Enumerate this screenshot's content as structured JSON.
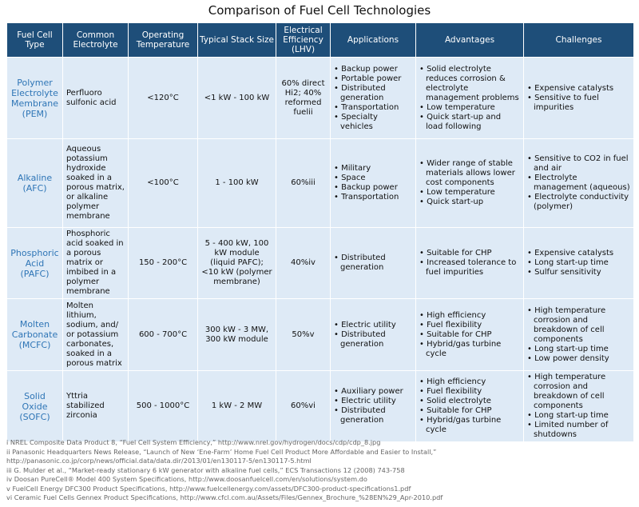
{
  "title": "Comparison of Fuel Cell Technologies",
  "table": {
    "header": [
      "Fuel Cell Type",
      "Common Electrolyte",
      "Operating Temperature",
      "Typical Stack Size",
      "Electrical Efficiency (LHV)",
      "Applications",
      "Advantages",
      "Challenges"
    ],
    "rows": [
      [
        "Polymer Electrolyte Membrane (PEM)",
        "Perfluoro sulfonic acid",
        "<120°C",
        "<1 kW - 100 kW",
        "60% direct Hi2; 40% reformed fuelii",
        [
          "Backup power",
          "Portable power",
          "Distributed generation",
          "Transportation",
          "Specialty vehicles"
        ],
        [
          "Solid electrolyte reduces corrosion & electrolyte management problems",
          "Low temperature",
          "Quick start-up and load following"
        ],
        [
          "Expensive catalysts",
          "Sensitive to fuel impurities"
        ]
      ],
      [
        "Alkaline (AFC)",
        "Aqueous potassium hydroxide soaked in a porous matrix, or alkaline polymer membrane",
        "<100°C",
        "1 - 100 kW",
        "60%iii",
        [
          "Military",
          "Space",
          "Backup power",
          "Transportation"
        ],
        [
          "Wider range of stable materials allows lower cost components",
          "Low temperature",
          "Quick start-up"
        ],
        [
          "Sensitive to CO2 in fuel and air",
          "Electrolyte management (aqueous)",
          "Electrolyte conductivity (polymer)"
        ]
      ],
      [
        "Phosphoric Acid (PAFC)",
        "Phosphoric acid soaked in a porous matrix or imbibed in a polymer membrane",
        "150 - 200°C",
        "5 - 400 kW, 100 kW module (liquid PAFC); <10 kW (polymer membrane)",
        "40%iv",
        [
          "Distributed generation"
        ],
        [
          "Suitable for CHP",
          "Increased tolerance to fuel impurities"
        ],
        [
          "Expensive catalysts",
          "Long start-up time",
          "Sulfur sensitivity"
        ]
      ],
      [
        "Molten Carbonate (MCFC)",
        "Molten lithium, sodium, and/ or potassium carbonates, soaked in a porous matrix",
        "600 - 700°C",
        "300 kW - 3 MW, 300 kW module",
        "50%v",
        [
          "Electric utility",
          "Distributed generation"
        ],
        [
          "High efficiency",
          "Fuel flexibility",
          "Suitable for CHP",
          "Hybrid/gas turbine cycle"
        ],
        [
          "High temperature corrosion and breakdown of cell components",
          "Long start-up time",
          "Low power density"
        ]
      ],
      [
        "Solid Oxide (SOFC)",
        "Yttria stabilized zirconia",
        "500 - 1000°C",
        "1 kW - 2 MW",
        "60%vi",
        [
          "Auxiliary power",
          "Electric utility",
          "Distributed generation"
        ],
        [
          "High efficiency",
          "Fuel flexibility",
          "Solid electrolyte",
          "Suitable for CHP",
          "Hybrid/gas turbine cycle"
        ],
        [
          "High temperature corrosion and breakdown of cell components",
          "Long start-up time",
          "Limited number of shutdowns"
        ]
      ]
    ]
  },
  "footnotes": [
    "i NREL Composite Data Product 8, “Fuel Cell System Efficiency,” http://www.nrel.gov/hydrogen/docs/cdp/cdp_8.jpg",
    "ii Panasonic Headquarters News Release, “Launch of New ‘Ene-Farm’ Home Fuel Cell Product More Affordable and Easier to Install,” http://panasonic.co.jp/corp/news/official.data/data.dir/2013/01/en130117-5/en130117-5.html",
    "iii G. Mulder et al., “Market-ready stationary 6 kW generator with alkaline fuel cells,” ECS Transactions 12 (2008) 743-758",
    "iv Doosan PureCell® Model 400 System Specifications, http://www.doosanfuelcell.com/en/solutions/system.do",
    "v FuelCell Energy DFC300 Product Specifications, http://www.fuelcellenergy.com/assets/DFC300-product-specifications1.pdf",
    "vi Ceramic Fuel Cells Gennex Product Specifications, http://www.cfcl.com.au/Assets/Files/Gennex_Brochure_%28EN%29_Apr-2010.pdf"
  ]
}
